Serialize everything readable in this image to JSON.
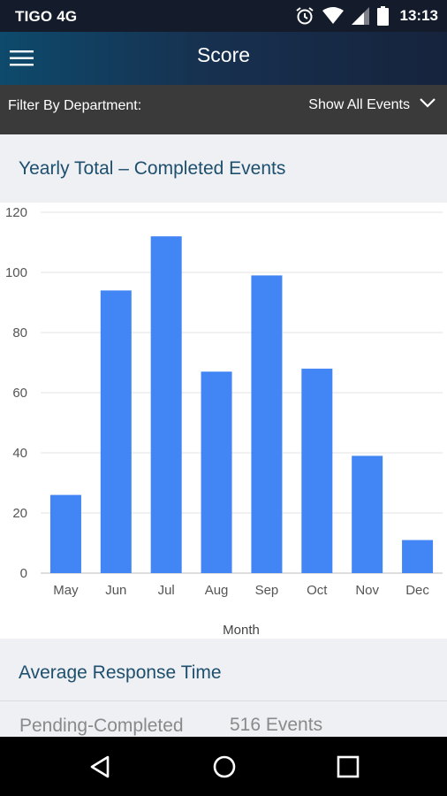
{
  "status_bar": {
    "carrier": "TIGO 4G",
    "time": "13:13",
    "icons": [
      "alarm-icon",
      "wifi-icon",
      "signal-icon",
      "battery-icon"
    ]
  },
  "app_bar": {
    "title": "Score",
    "menu_icon": "hamburger-menu-icon"
  },
  "filter": {
    "label": "Filter By Department:",
    "selected": "Show All Events",
    "icon": "chevron-down-icon"
  },
  "chart_section": {
    "title": "Yearly Total – Completed Events"
  },
  "chart_data": {
    "type": "bar",
    "categories": [
      "May",
      "Jun",
      "Jul",
      "Aug",
      "Sep",
      "Oct",
      "Nov",
      "Dec"
    ],
    "values": [
      26,
      94,
      112,
      67,
      99,
      68,
      39,
      11
    ],
    "title": "",
    "xlabel": "Month",
    "ylabel": "",
    "ylim": [
      0,
      120
    ],
    "yticks": [
      0,
      20,
      40,
      60,
      80,
      100,
      120
    ],
    "grid": true,
    "legend": "none",
    "bar_color": "#4285f4"
  },
  "response_section": {
    "title": "Average Response Time",
    "rows": [
      {
        "label": "Pending-Completed",
        "value": "516 Events"
      }
    ]
  },
  "nav_bar": {
    "buttons": [
      "back-icon",
      "home-icon",
      "recents-icon"
    ]
  },
  "colors": {
    "status_bar": "#141b2a",
    "filter_bar": "#3a3a3a",
    "section_title": "#1e4f6e",
    "bar": "#4285f4"
  }
}
